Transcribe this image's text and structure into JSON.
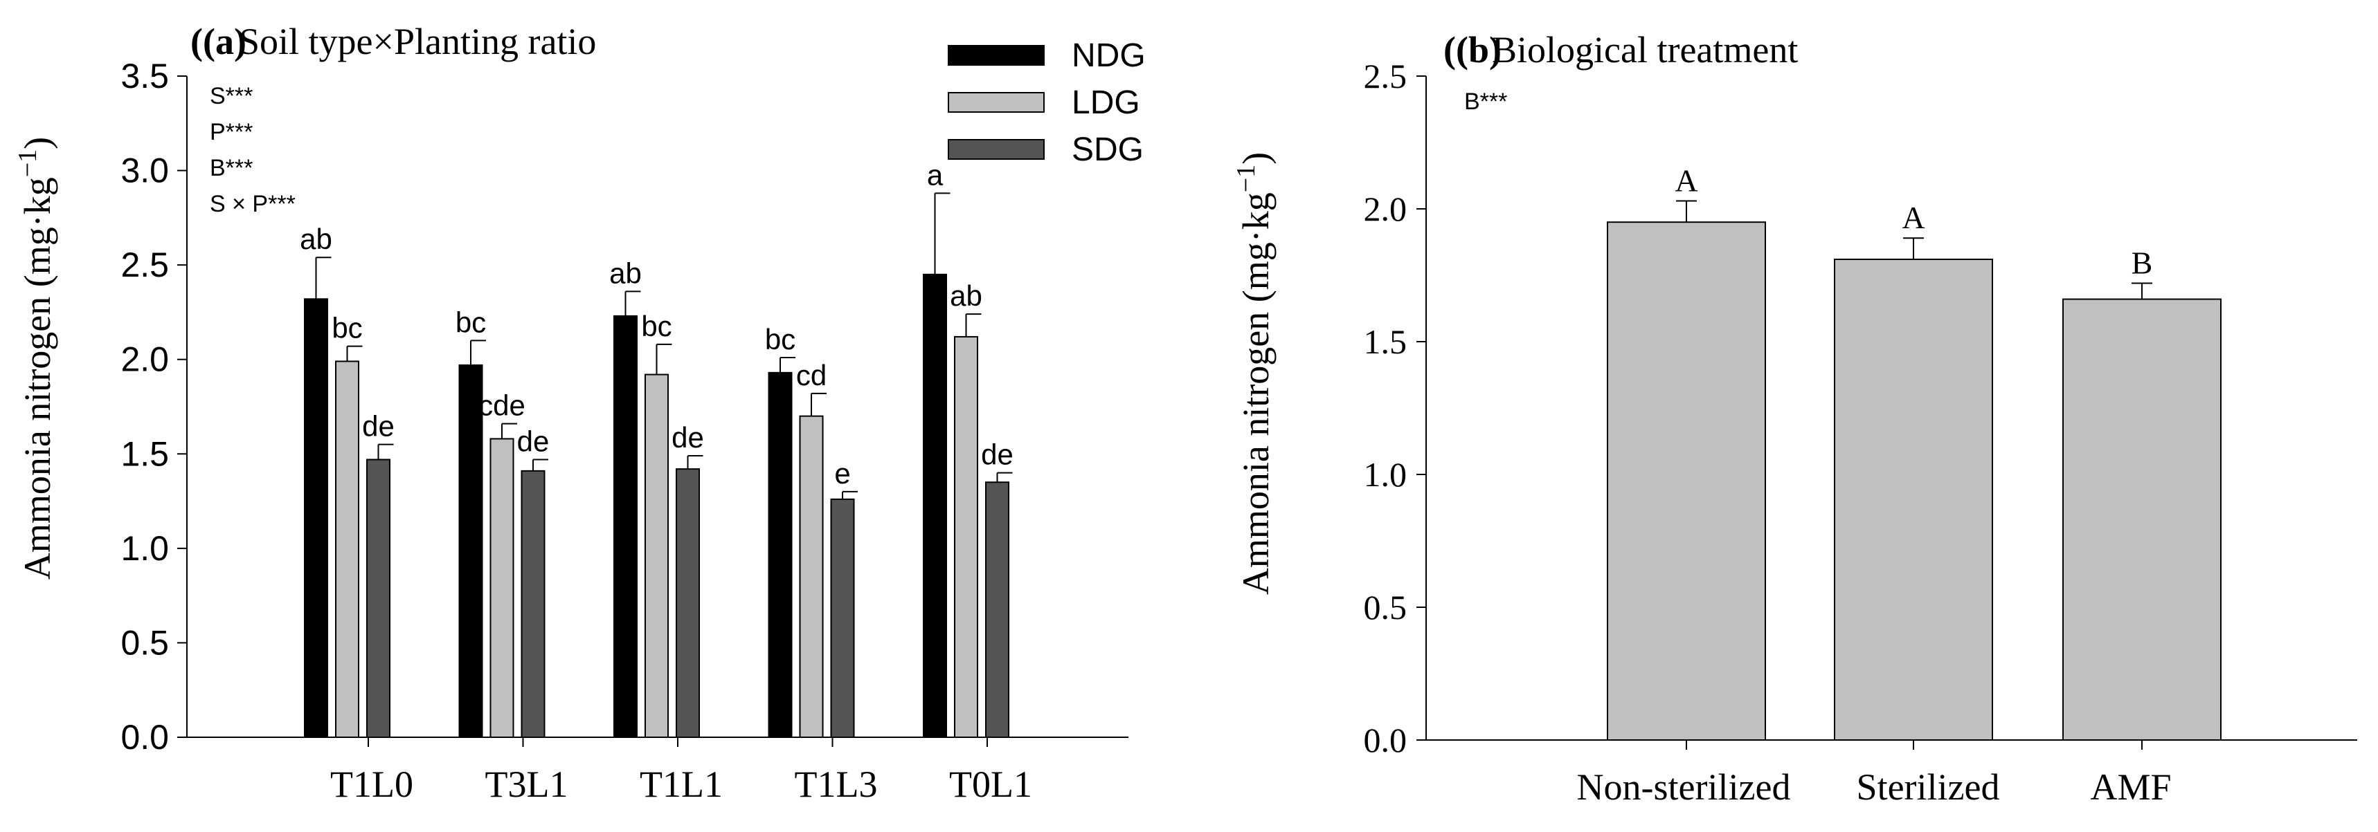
{
  "chart_data": [
    {
      "type": "bar",
      "panel": "(a)",
      "title": "Soil type×Planting ratio",
      "ylabel_main": "Ammonia nitrogen (mg·kg",
      "ylabel_sup": "−1",
      "ylabel_end": ")",
      "ylim": [
        0,
        3.5
      ],
      "yticks": [
        "0.0",
        "0.5",
        "1.0",
        "1.5",
        "2.0",
        "2.5",
        "3.0",
        "3.5"
      ],
      "categories": [
        "T1L0",
        "T3L1",
        "T1L1",
        "T1L3",
        "T0L1"
      ],
      "series": [
        {
          "name": "NDG",
          "color": "#000000",
          "values": [
            2.32,
            1.97,
            2.23,
            1.93,
            2.45
          ],
          "errors": [
            0.22,
            0.13,
            0.13,
            0.08,
            0.43
          ],
          "letters": [
            "ab",
            "bc",
            "ab",
            "bc",
            "a"
          ]
        },
        {
          "name": "LDG",
          "color": "#c0c0c0",
          "values": [
            1.99,
            1.58,
            1.92,
            1.7,
            2.12
          ],
          "errors": [
            0.08,
            0.08,
            0.16,
            0.12,
            0.12
          ],
          "letters": [
            "bc",
            "cde",
            "bc",
            "cd",
            "ab"
          ]
        },
        {
          "name": "SDG",
          "color": "#555555",
          "values": [
            1.47,
            1.41,
            1.42,
            1.26,
            1.35
          ],
          "errors": [
            0.08,
            0.06,
            0.07,
            0.04,
            0.05
          ],
          "letters": [
            "de",
            "de",
            "de",
            "e",
            "de"
          ]
        }
      ],
      "significance": [
        "S***",
        "P***",
        "B***",
        "S × P***"
      ],
      "legend": "top-right",
      "grid": false
    },
    {
      "type": "bar",
      "panel": "(b)",
      "title": "Biological treatment",
      "ylabel_main": "Ammonia nitrogen (mg·kg",
      "ylabel_sup": "−1",
      "ylabel_end": ")",
      "ylim": [
        0,
        2.5
      ],
      "yticks": [
        "0.0",
        "0.5",
        "1.0",
        "1.5",
        "2.0",
        "2.5"
      ],
      "categories": [
        "Non-sterilized",
        "Sterilized",
        "AMF"
      ],
      "values": [
        1.95,
        1.81,
        1.66
      ],
      "errors": [
        0.08,
        0.08,
        0.06
      ],
      "letters": [
        "A",
        "A",
        "B"
      ],
      "color": "#c0c0c0",
      "significance": [
        "B***"
      ],
      "grid": false
    }
  ]
}
